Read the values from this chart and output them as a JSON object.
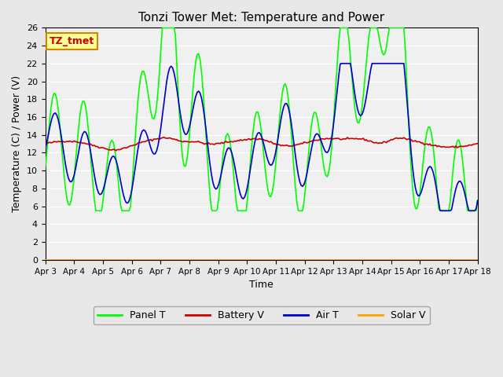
{
  "title": "Tonzi Tower Met: Temperature and Power",
  "xlabel": "Time",
  "ylabel": "Temperature (C) / Power (V)",
  "ylim": [
    0,
    26
  ],
  "yticks": [
    0,
    2,
    4,
    6,
    8,
    10,
    12,
    14,
    16,
    18,
    20,
    22,
    24,
    26
  ],
  "xlabels": [
    "Apr 3",
    "Apr 4",
    "Apr 5",
    "Apr 6",
    "Apr 7",
    "Apr 8",
    "Apr 9",
    "Apr 10",
    "Apr 11",
    "Apr 12",
    "Apr 13",
    "Apr 14",
    "Apr 15",
    "Apr 16",
    "Apr 17",
    "Apr 18"
  ],
  "colors": {
    "panel_t": "#00FF00",
    "battery_v": "#CC0000",
    "air_t": "#0000CC",
    "solar_v": "#FFA500",
    "background": "#E8E8E8",
    "plot_bg": "#F0F0F0",
    "annotation_bg": "#FFFF99",
    "annotation_border": "#CC8800",
    "annotation_text": "#CC0000"
  },
  "annotation_text": "TZ_tmet",
  "legend_labels": [
    "Panel T",
    "Battery V",
    "Air T",
    "Solar V"
  ],
  "solar_v_value": 0.0,
  "n_points": 300
}
